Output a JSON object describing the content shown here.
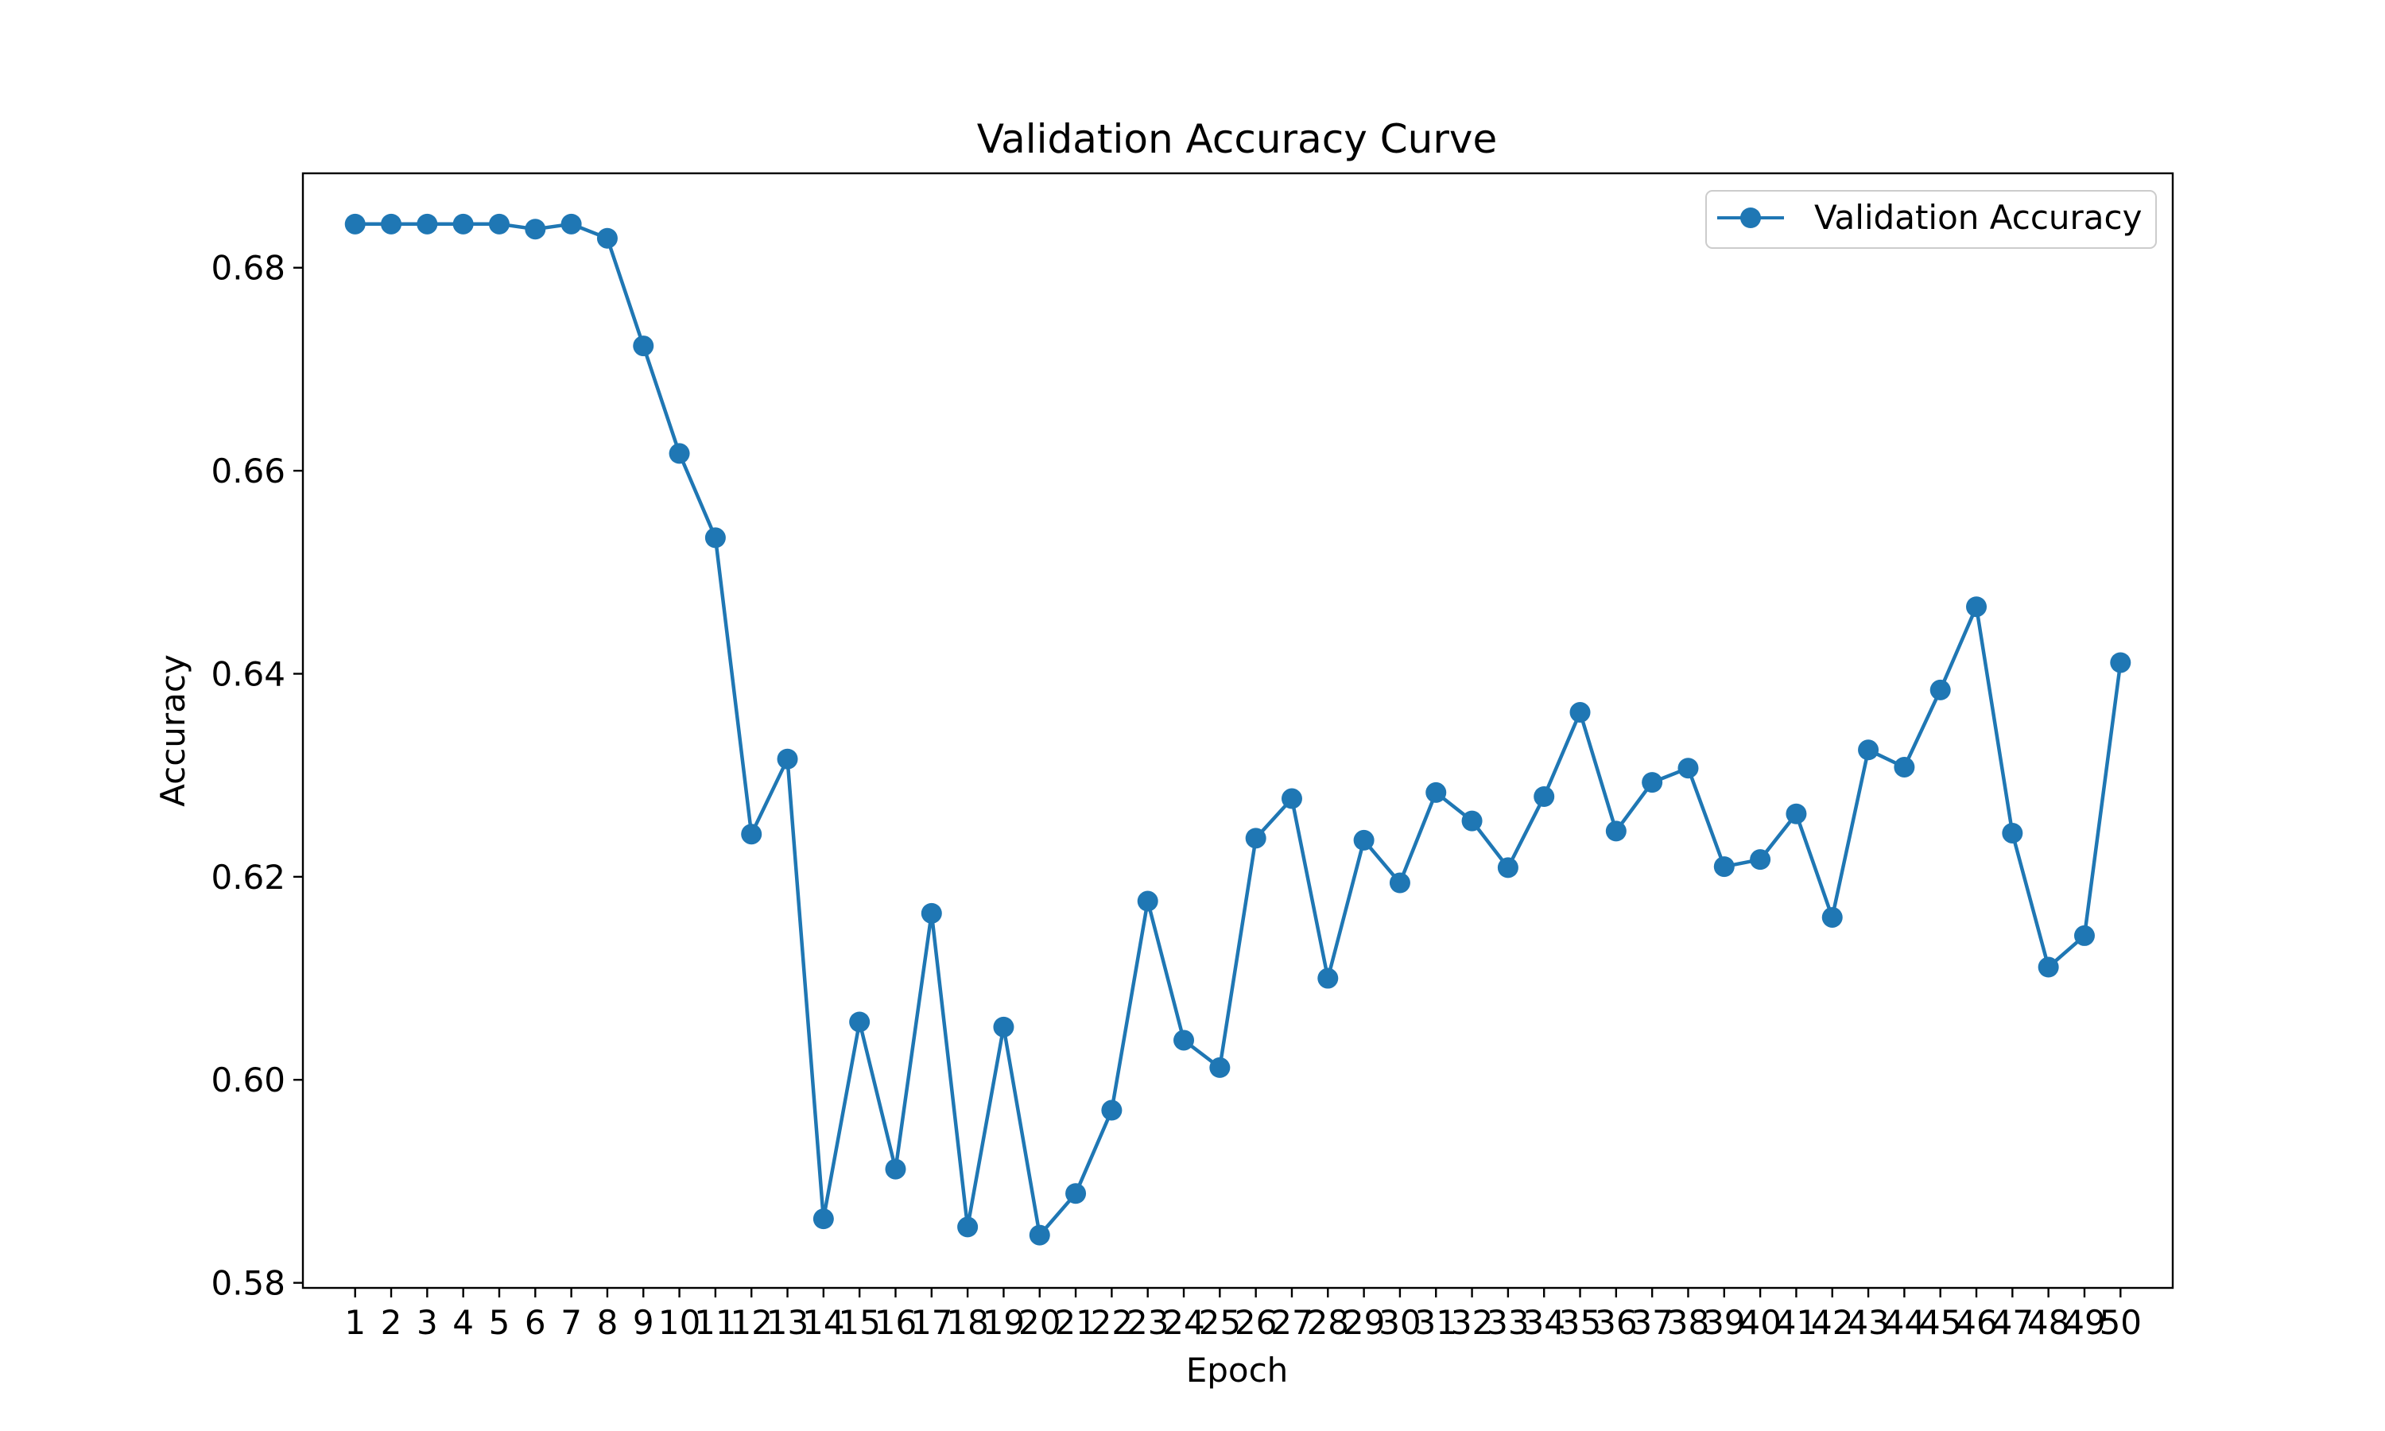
{
  "chart_data": {
    "type": "line",
    "title": "Validation Accuracy Curve",
    "xlabel": "Epoch",
    "ylabel": "Accuracy",
    "x": [
      1,
      2,
      3,
      4,
      5,
      6,
      7,
      8,
      9,
      10,
      11,
      12,
      13,
      14,
      15,
      16,
      17,
      18,
      19,
      20,
      21,
      22,
      23,
      24,
      25,
      26,
      27,
      28,
      29,
      30,
      31,
      32,
      33,
      34,
      35,
      36,
      37,
      38,
      39,
      40,
      41,
      42,
      43,
      44,
      45,
      46,
      47,
      48,
      49,
      50
    ],
    "xticks": [
      "1",
      "2",
      "3",
      "4",
      "5",
      "6",
      "7",
      "8",
      "9",
      "10",
      "11",
      "12",
      "13",
      "14",
      "15",
      "16",
      "17",
      "18",
      "19",
      "20",
      "21",
      "22",
      "23",
      "24",
      "25",
      "26",
      "27",
      "28",
      "29",
      "30",
      "31",
      "32",
      "33",
      "34",
      "35",
      "36",
      "37",
      "38",
      "39",
      "40",
      "41",
      "42",
      "43",
      "44",
      "45",
      "46",
      "47",
      "48",
      "49",
      "50"
    ],
    "yticks": [
      "0.58",
      "0.60",
      "0.62",
      "0.64",
      "0.66",
      "0.68"
    ],
    "ytick_values": [
      0.58,
      0.6,
      0.62,
      0.64,
      0.66,
      0.68
    ],
    "xlim": [
      -0.45,
      51.45
    ],
    "ylim": [
      0.5795,
      0.6893
    ],
    "grid": false,
    "legend_position": "top-right",
    "series": [
      {
        "name": "Validation Accuracy",
        "color": "#1f77b4",
        "marker": "circle",
        "values": [
          0.6843,
          0.6843,
          0.6843,
          0.6843,
          0.6843,
          0.6838,
          0.6843,
          0.6829,
          0.6723,
          0.6617,
          0.6534,
          0.6242,
          0.6316,
          0.5863,
          0.6057,
          0.5912,
          0.6164,
          0.5855,
          0.6052,
          0.5847,
          0.5888,
          0.597,
          0.6176,
          0.6039,
          0.6012,
          0.6238,
          0.6277,
          0.61,
          0.6236,
          0.6194,
          0.6283,
          0.6255,
          0.6209,
          0.6279,
          0.6362,
          0.6245,
          0.6293,
          0.6307,
          0.621,
          0.6217,
          0.6262,
          0.616,
          0.6325,
          0.6308,
          0.6384,
          0.6466,
          0.6243,
          0.6111,
          0.6142,
          0.6411
        ]
      }
    ]
  }
}
